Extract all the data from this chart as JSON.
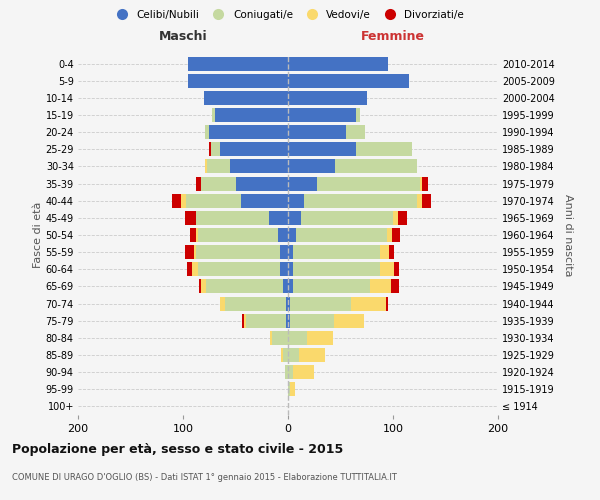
{
  "age_groups": [
    "100+",
    "95-99",
    "90-94",
    "85-89",
    "80-84",
    "75-79",
    "70-74",
    "65-69",
    "60-64",
    "55-59",
    "50-54",
    "45-49",
    "40-44",
    "35-39",
    "30-34",
    "25-29",
    "20-24",
    "15-19",
    "10-14",
    "5-9",
    "0-4"
  ],
  "birth_years": [
    "≤ 1914",
    "1915-1919",
    "1920-1924",
    "1925-1929",
    "1930-1934",
    "1935-1939",
    "1940-1944",
    "1945-1949",
    "1950-1954",
    "1955-1959",
    "1960-1964",
    "1965-1969",
    "1970-1974",
    "1975-1979",
    "1980-1984",
    "1985-1989",
    "1990-1994",
    "1995-1999",
    "2000-2004",
    "2005-2009",
    "2010-2014"
  ],
  "males": {
    "celibe": [
      0,
      0,
      0,
      0,
      0,
      2,
      2,
      5,
      8,
      8,
      10,
      18,
      45,
      50,
      55,
      65,
      75,
      70,
      80,
      95,
      95
    ],
    "coniugato": [
      0,
      0,
      3,
      5,
      15,
      38,
      58,
      73,
      78,
      80,
      76,
      70,
      52,
      33,
      22,
      8,
      4,
      2,
      0,
      0,
      0
    ],
    "vedovo": [
      0,
      0,
      0,
      2,
      2,
      2,
      5,
      5,
      5,
      2,
      2,
      0,
      5,
      0,
      2,
      0,
      0,
      0,
      0,
      0,
      0
    ],
    "divorziato": [
      0,
      0,
      0,
      0,
      0,
      2,
      0,
      2,
      5,
      8,
      5,
      10,
      8,
      5,
      0,
      2,
      0,
      0,
      0,
      0,
      0
    ]
  },
  "females": {
    "nubile": [
      0,
      0,
      0,
      0,
      0,
      2,
      2,
      5,
      5,
      5,
      8,
      12,
      15,
      28,
      45,
      65,
      55,
      65,
      75,
      115,
      95
    ],
    "coniugata": [
      0,
      2,
      5,
      10,
      18,
      42,
      58,
      73,
      83,
      83,
      86,
      88,
      108,
      98,
      78,
      53,
      18,
      4,
      0,
      0,
      0
    ],
    "vedova": [
      0,
      5,
      20,
      25,
      25,
      28,
      33,
      20,
      13,
      8,
      5,
      5,
      5,
      2,
      0,
      0,
      0,
      0,
      0,
      0,
      0
    ],
    "divorziata": [
      0,
      0,
      0,
      0,
      0,
      0,
      2,
      8,
      5,
      5,
      8,
      8,
      8,
      5,
      0,
      0,
      0,
      0,
      0,
      0,
      0
    ]
  },
  "colors": {
    "celibe": "#4472C4",
    "coniugato": "#C5D9A0",
    "vedovo": "#FAD96C",
    "divorziato": "#CC0000"
  },
  "legend_labels": [
    "Celibi/Nubili",
    "Coniugati/e",
    "Vedovi/e",
    "Divorziati/e"
  ],
  "xlabel_left": "Maschi",
  "xlabel_right": "Femmine",
  "ylabel_left": "Fasce di età",
  "ylabel_right": "Anni di nascita",
  "title": "Popolazione per età, sesso e stato civile - 2015",
  "subtitle": "COMUNE DI URAGO D'OGLIO (BS) - Dati ISTAT 1° gennaio 2015 - Elaborazione TUTTITALIA.IT",
  "xlim": 200,
  "bg_color": "#f5f5f5",
  "grid_color": "#cccccc"
}
